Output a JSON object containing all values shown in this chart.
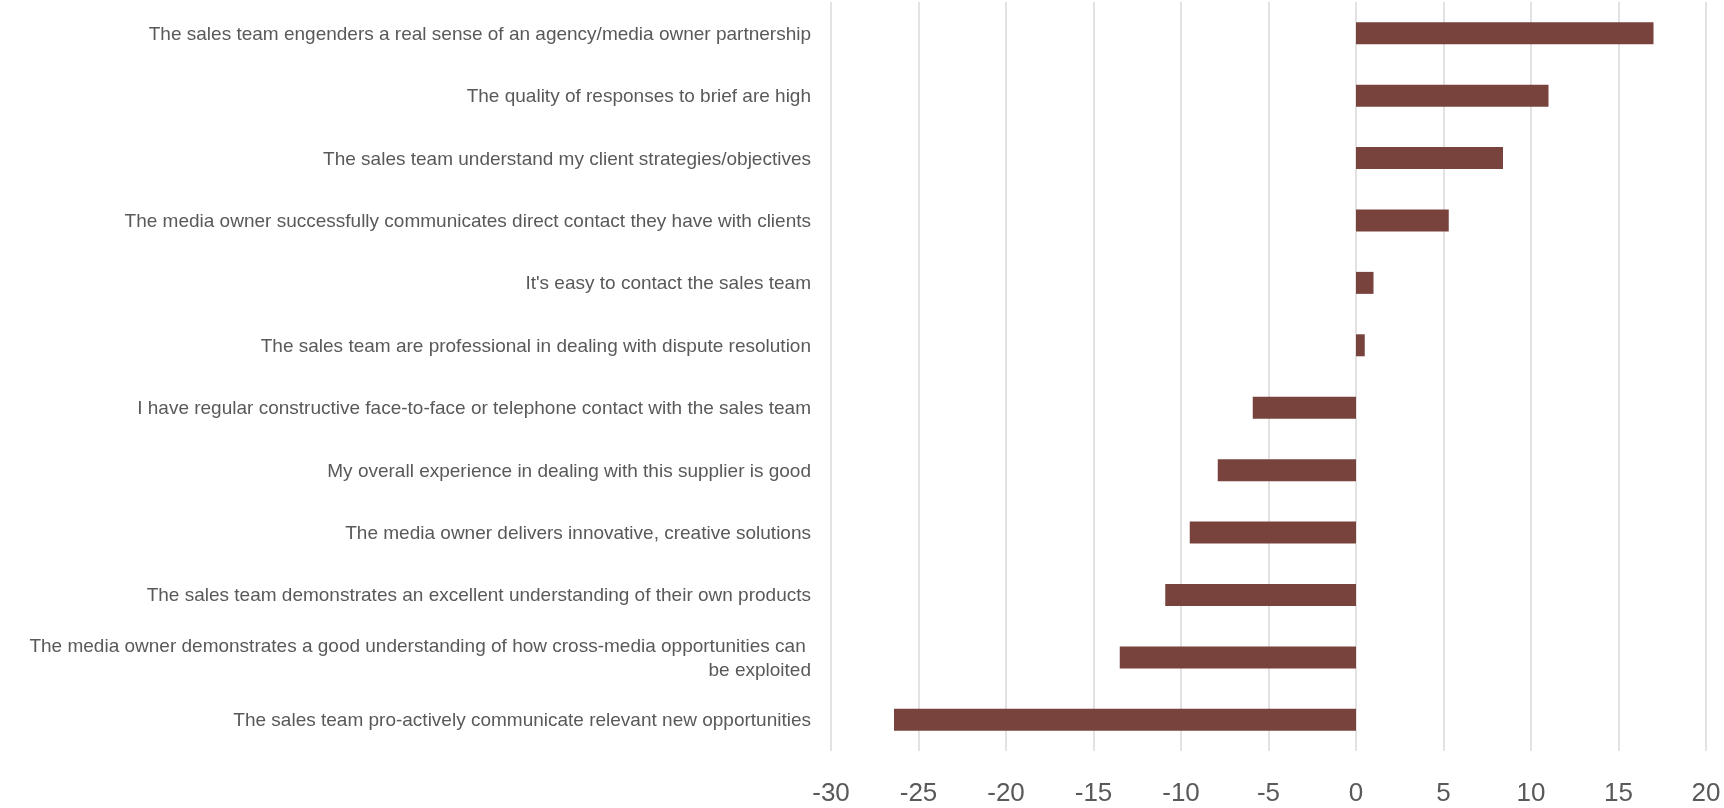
{
  "chart_data": {
    "type": "bar",
    "orientation": "horizontal",
    "categories": [
      "The sales team engenders a real sense of an agency/media owner partnership",
      "The quality of responses to brief are high",
      "The sales team understand my client strategies/objectives",
      "The media owner successfully communicates direct contact they have with clients",
      "It's easy to contact the sales team",
      "The sales team are professional in dealing with dispute resolution",
      "I have regular constructive face-to-face or telephone contact with the sales team",
      "My overall experience in dealing with this supplier is good",
      "The media owner delivers innovative, creative solutions",
      "The sales team demonstrates an excellent understanding of their own products",
      "The media owner demonstrates a good understanding of how cross-media opportunities can be exploited",
      "The sales team pro-actively communicate relevant new opportunities"
    ],
    "values": [
      17,
      11,
      8.4,
      5.3,
      1,
      0.5,
      -5.9,
      -7.9,
      -9.5,
      -10.9,
      -13.5,
      -26.4
    ],
    "color": "#79433d",
    "xlim": [
      -30,
      20
    ],
    "xticks": [
      -30,
      -25,
      -20,
      -15,
      -10,
      -5,
      0,
      5,
      10,
      15,
      20
    ],
    "grid": "x"
  }
}
